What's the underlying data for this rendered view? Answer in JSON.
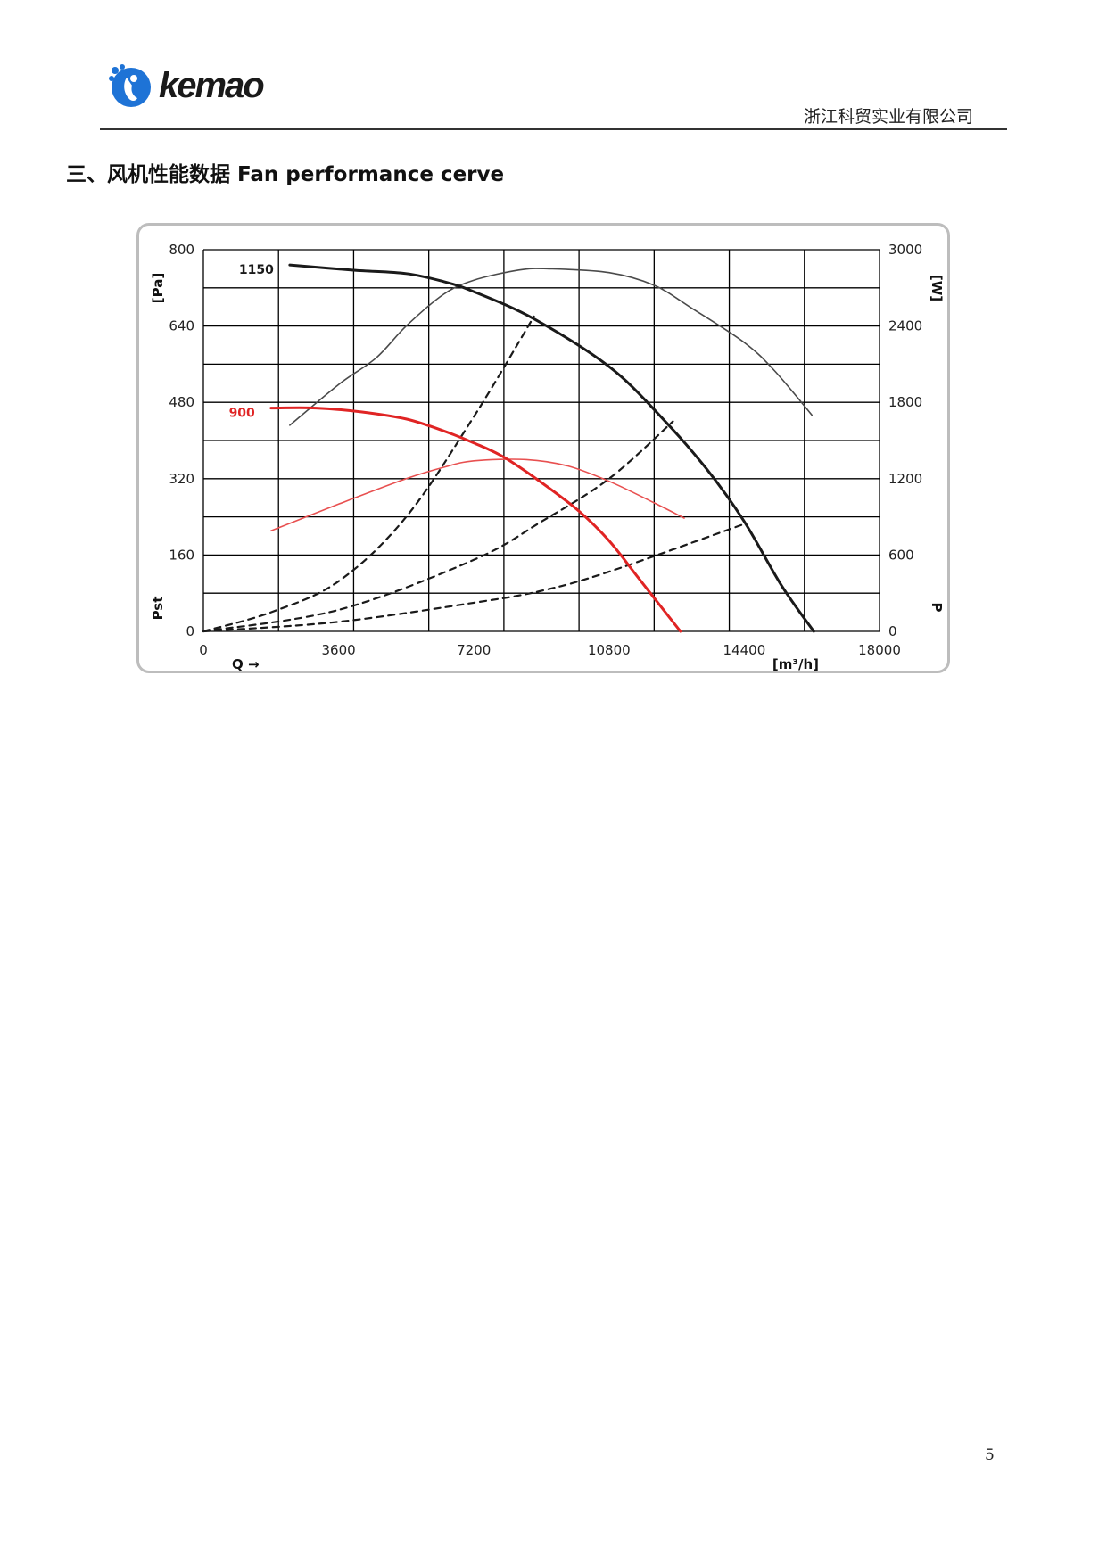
{
  "header": {
    "brand": "kemao",
    "company": "浙江科贸实业有限公司"
  },
  "section_title": "三、风机性能数据  Fan performance cerve",
  "page_number": "5",
  "chart_data": {
    "type": "line",
    "x_label": "Q →",
    "x_unit": "[m³/h]",
    "y_left_label": "Pst",
    "y_left_unit": "[Pa]",
    "y_right_label": "P",
    "y_right_unit": "[W]",
    "xlim": [
      0,
      18000
    ],
    "ylim_left": [
      0,
      800
    ],
    "ylim_right": [
      0,
      3000
    ],
    "x_ticks": [
      "0",
      "3600",
      "7200",
      "10800",
      "14400",
      "18000"
    ],
    "y_left_ticks": [
      "0",
      "160",
      "320",
      "480",
      "640",
      "800"
    ],
    "y_right_ticks": [
      "0",
      "600",
      "1200",
      "1800",
      "2400",
      "3000"
    ],
    "grid": true,
    "series": [
      {
        "name": "1150",
        "kind": "pressure",
        "axis": "left",
        "color": "#1a1a1a",
        "points": [
          [
            2300,
            768
          ],
          [
            4000,
            757
          ],
          [
            5400,
            750
          ],
          [
            6400,
            733
          ],
          [
            7200,
            712
          ],
          [
            8800,
            655
          ],
          [
            10800,
            555
          ],
          [
            12200,
            448
          ],
          [
            13400,
            340
          ],
          [
            14400,
            230
          ],
          [
            15400,
            95
          ],
          [
            16250,
            0
          ]
        ]
      },
      {
        "name": "900",
        "kind": "pressure",
        "axis": "left",
        "color": "#e02424",
        "points": [
          [
            1800,
            468
          ],
          [
            3000,
            468
          ],
          [
            4200,
            460
          ],
          [
            5400,
            445
          ],
          [
            6400,
            420
          ],
          [
            7200,
            395
          ],
          [
            8000,
            365
          ],
          [
            9000,
            312
          ],
          [
            10000,
            252
          ],
          [
            10800,
            190
          ],
          [
            11600,
            110
          ],
          [
            12700,
            0
          ]
        ]
      },
      {
        "name": "",
        "kind": "power",
        "axis": "right",
        "color": "#4a4a4a",
        "points": [
          [
            2300,
            1620
          ],
          [
            3600,
            1940
          ],
          [
            4600,
            2150
          ],
          [
            5400,
            2400
          ],
          [
            6400,
            2650
          ],
          [
            7200,
            2760
          ],
          [
            8400,
            2840
          ],
          [
            9200,
            2850
          ],
          [
            10800,
            2820
          ],
          [
            12000,
            2720
          ],
          [
            13000,
            2540
          ],
          [
            14400,
            2270
          ],
          [
            15200,
            2050
          ],
          [
            16200,
            1700
          ]
        ]
      },
      {
        "name": "",
        "kind": "power",
        "axis": "right",
        "color": "#e85050",
        "points": [
          [
            1800,
            790
          ],
          [
            3600,
            1000
          ],
          [
            5400,
            1200
          ],
          [
            6400,
            1290
          ],
          [
            7200,
            1340
          ],
          [
            8600,
            1350
          ],
          [
            9700,
            1300
          ],
          [
            10800,
            1180
          ],
          [
            12000,
            1010
          ],
          [
            12800,
            890
          ]
        ]
      },
      {
        "name": "",
        "kind": "system",
        "axis": "left",
        "color": "#1a1a1a",
        "dashed": true,
        "points": [
          [
            0,
            0
          ],
          [
            1800,
            40
          ],
          [
            3600,
            105
          ],
          [
            5400,
            240
          ],
          [
            7200,
            450
          ],
          [
            8800,
            660
          ]
        ]
      },
      {
        "name": "",
        "kind": "system",
        "axis": "left",
        "color": "#1a1a1a",
        "dashed": true,
        "points": [
          [
            0,
            0
          ],
          [
            3600,
            45
          ],
          [
            7200,
            150
          ],
          [
            9000,
            230
          ],
          [
            10800,
            320
          ],
          [
            12500,
            440
          ]
        ]
      },
      {
        "name": "",
        "kind": "system",
        "axis": "left",
        "color": "#1a1a1a",
        "dashed": true,
        "points": [
          [
            0,
            0
          ],
          [
            3600,
            20
          ],
          [
            7200,
            60
          ],
          [
            9000,
            85
          ],
          [
            10800,
            125
          ],
          [
            14400,
            225
          ]
        ]
      }
    ]
  }
}
